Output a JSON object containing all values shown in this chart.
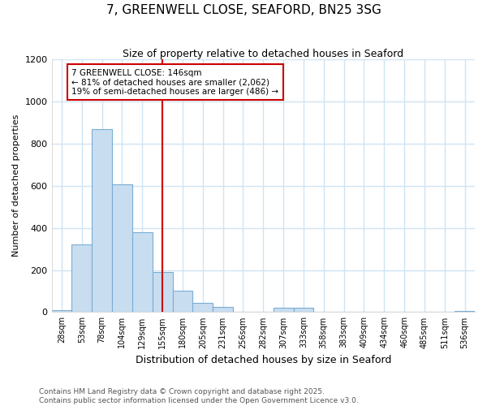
{
  "title": "7, GREENWELL CLOSE, SEAFORD, BN25 3SG",
  "subtitle": "Size of property relative to detached houses in Seaford",
  "xlabel": "Distribution of detached houses by size in Seaford",
  "ylabel": "Number of detached properties",
  "footer_line1": "Contains HM Land Registry data © Crown copyright and database right 2025.",
  "footer_line2": "Contains public sector information licensed under the Open Government Licence v3.0.",
  "bar_color": "#c8ddf0",
  "bar_edge_color": "#7aadd4",
  "annotation_box_edgecolor": "#cc0000",
  "vline_color": "#cc0000",
  "background_color": "#ffffff",
  "plot_background_color": "#ffffff",
  "grid_color": "#d0e4f4",
  "categories": [
    "28sqm",
    "53sqm",
    "78sqm",
    "104sqm",
    "129sqm",
    "155sqm",
    "180sqm",
    "205sqm",
    "231sqm",
    "256sqm",
    "282sqm",
    "307sqm",
    "333sqm",
    "358sqm",
    "383sqm",
    "409sqm",
    "434sqm",
    "460sqm",
    "485sqm",
    "511sqm",
    "536sqm"
  ],
  "values": [
    10,
    320,
    870,
    605,
    380,
    190,
    100,
    45,
    25,
    0,
    0,
    20,
    20,
    0,
    0,
    0,
    0,
    0,
    0,
    0,
    5
  ],
  "vline_x_index": 5,
  "annotation_text_line1": "7 GREENWELL CLOSE: 146sqm",
  "annotation_text_line2": "← 81% of detached houses are smaller (2,062)",
  "annotation_text_line3": "19% of semi-detached houses are larger (486) →",
  "ylim": [
    0,
    1200
  ],
  "yticks": [
    0,
    200,
    400,
    600,
    800,
    1000,
    1200
  ]
}
